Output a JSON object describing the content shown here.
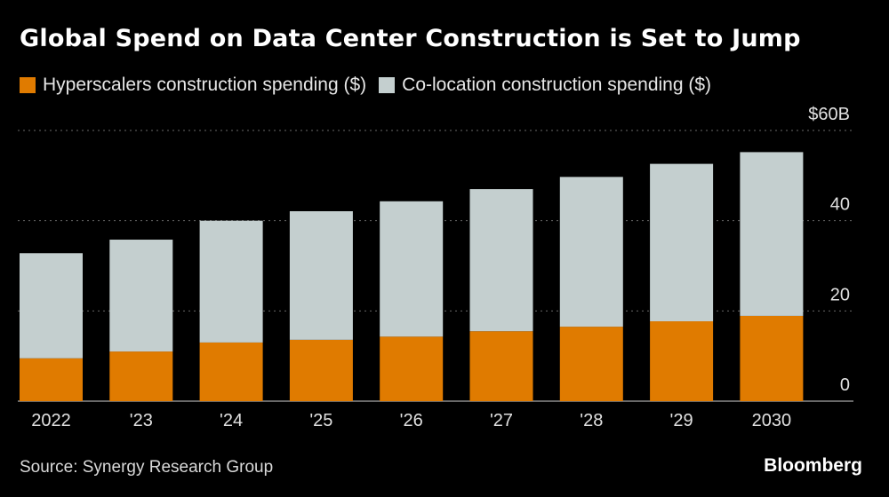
{
  "title": "Global Spend on Data Center Construction is Set to Jump",
  "legend": {
    "items": [
      {
        "label": "Hyperscalers construction spending ($)",
        "color": "#e07b00"
      },
      {
        "label": "Co-location construction spending ($)",
        "color": "#c4cfcf"
      }
    ]
  },
  "source": "Source: Synergy Research Group",
  "logo": "Bloomberg",
  "chart_data": {
    "type": "bar",
    "stacked": true,
    "title": "Global Spend on Data Center Construction is Set to Jump",
    "categories": [
      "2022",
      "'23",
      "'24",
      "'25",
      "'26",
      "'27",
      "'28",
      "'29",
      "2030"
    ],
    "series": [
      {
        "name": "Hyperscalers construction spending ($)",
        "color": "#e07b00",
        "values": [
          9.5,
          11,
          13,
          13.6,
          14.3,
          15.5,
          16.5,
          17.7,
          18.9
        ]
      },
      {
        "name": "Co-location construction spending ($)",
        "color": "#c4cfcf",
        "values": [
          23.3,
          24.8,
          27,
          28.5,
          30,
          31.5,
          33.2,
          34.9,
          36.3
        ]
      }
    ],
    "ylim": [
      0,
      60
    ],
    "yticks": [
      {
        "value": 0,
        "label": "0"
      },
      {
        "value": 20,
        "label": "20"
      },
      {
        "value": 40,
        "label": "40"
      },
      {
        "value": 60,
        "label": "$60B"
      }
    ],
    "ytick_label_position": "right",
    "grid": true,
    "xlabel": "",
    "ylabel": ""
  }
}
